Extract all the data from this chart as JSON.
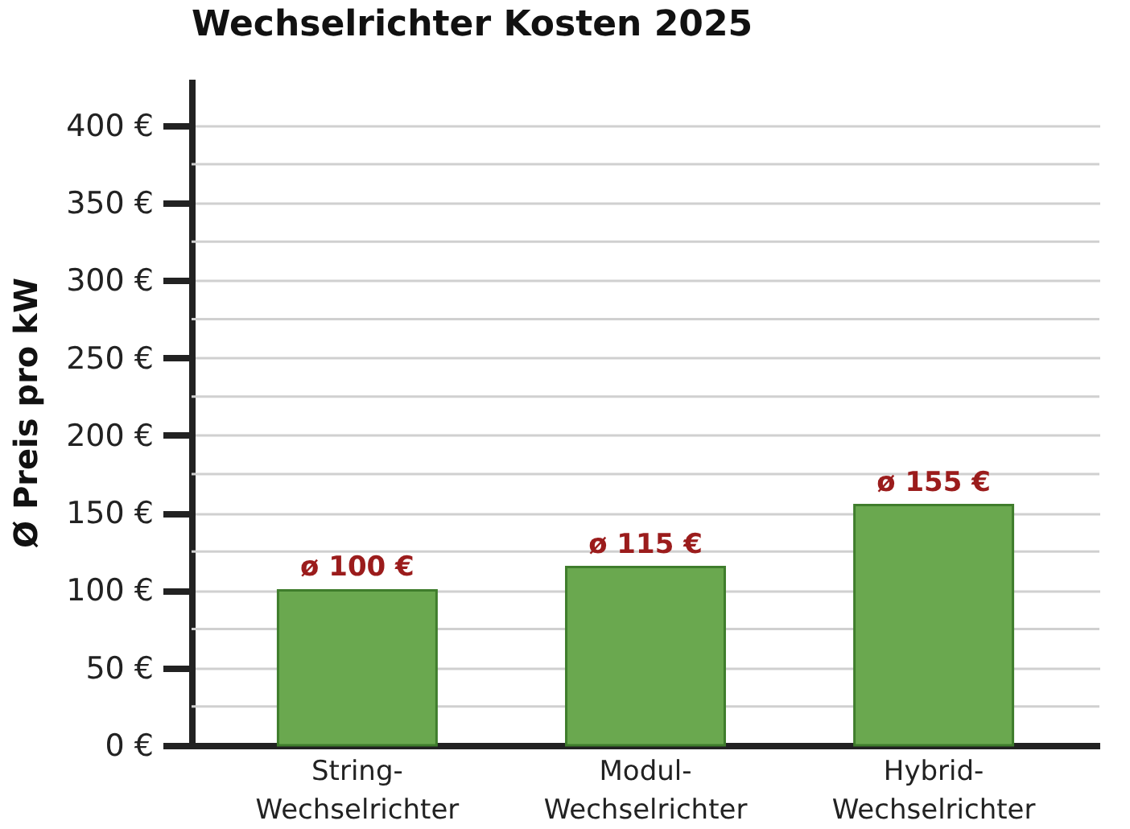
{
  "chart_data": {
    "type": "bar",
    "title": "Wechselrichter Kosten 2025",
    "ylabel": "Ø Preis pro kW",
    "categories": [
      "String-\nWechselrichter",
      "Modul-\nWechselrichter",
      "Hybrid-\nWechselrichter"
    ],
    "values": [
      100,
      115,
      155
    ],
    "color": "#6aa84f",
    "value_labels": [
      "ø 100 €",
      "ø 115 €",
      "ø 155 €"
    ],
    "ylim": [
      0,
      430
    ],
    "yticks": [
      {
        "value": 0,
        "label": "0 €"
      },
      {
        "value": 25,
        "label": null
      },
      {
        "value": 50,
        "label": "50 €"
      },
      {
        "value": 75,
        "label": null
      },
      {
        "value": 100,
        "label": "100 €"
      },
      {
        "value": 125,
        "label": null
      },
      {
        "value": 150,
        "label": "150 €"
      },
      {
        "value": 175,
        "label": null
      },
      {
        "value": 200,
        "label": "200 €"
      },
      {
        "value": 225,
        "label": null
      },
      {
        "value": 250,
        "label": "250 €"
      },
      {
        "value": 275,
        "label": null
      },
      {
        "value": 300,
        "label": "300 €"
      },
      {
        "value": 325,
        "label": null
      },
      {
        "value": 350,
        "label": "350 €"
      },
      {
        "value": 375,
        "label": null
      },
      {
        "value": 400,
        "label": "400 €"
      }
    ],
    "grid": "y"
  }
}
